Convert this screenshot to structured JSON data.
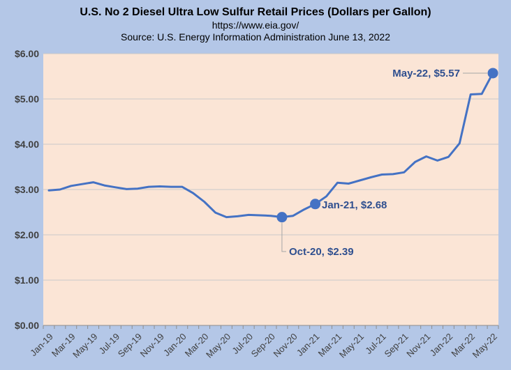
{
  "chart_data": {
    "type": "line",
    "title": "U.S. No 2 Diesel Ultra Low Sulfur Retail Prices (Dollars per Gallon)",
    "subtitle": "https://www.eia.gov/",
    "source": "Source: U.S. Energy Information Administration  June 13, 2022",
    "xlabel": "",
    "ylabel": "",
    "ylim": [
      0,
      6
    ],
    "grid": true,
    "colors": {
      "line": "#4472c4",
      "plot_bg": "#fbe5d6",
      "page_bg": "#b4c7e7",
      "annotation": "#2f4f8f"
    },
    "y_ticks": [
      "$0.00",
      "$1.00",
      "$2.00",
      "$3.00",
      "$4.00",
      "$5.00",
      "$6.00"
    ],
    "x_tick_labels": [
      "Jan-19",
      "Mar-19",
      "May-19",
      "Jul-19",
      "Sep-19",
      "Nov-19",
      "Jan-20",
      "Mar-20",
      "May-20",
      "Jul-20",
      "Sep-20",
      "Nov-20",
      "Jan-21",
      "Mar-21",
      "May-21",
      "Jul-21",
      "Sep-21",
      "Nov-21",
      "Jan-22",
      "Mar-22",
      "May-22"
    ],
    "x": [
      "Jan-19",
      "Feb-19",
      "Mar-19",
      "Apr-19",
      "May-19",
      "Jun-19",
      "Jul-19",
      "Aug-19",
      "Sep-19",
      "Oct-19",
      "Nov-19",
      "Dec-19",
      "Jan-20",
      "Feb-20",
      "Mar-20",
      "Apr-20",
      "May-20",
      "Jun-20",
      "Jul-20",
      "Aug-20",
      "Sep-20",
      "Oct-20",
      "Nov-20",
      "Dec-20",
      "Jan-21",
      "Feb-21",
      "Mar-21",
      "Apr-21",
      "May-21",
      "Jun-21",
      "Jul-21",
      "Aug-21",
      "Sep-21",
      "Oct-21",
      "Nov-21",
      "Dec-21",
      "Jan-22",
      "Feb-22",
      "Mar-22",
      "Apr-22",
      "May-22"
    ],
    "series": [
      {
        "values": [
          2.98,
          3.0,
          3.08,
          3.12,
          3.16,
          3.09,
          3.05,
          3.01,
          3.02,
          3.06,
          3.07,
          3.06,
          3.06,
          2.92,
          2.73,
          2.49,
          2.39,
          2.41,
          2.44,
          2.43,
          2.42,
          2.39,
          2.42,
          2.56,
          2.68,
          2.85,
          3.15,
          3.13,
          3.2,
          3.27,
          3.33,
          3.34,
          3.38,
          3.61,
          3.73,
          3.64,
          3.72,
          4.02,
          5.1,
          5.11,
          5.57
        ]
      }
    ],
    "annotations": [
      {
        "label": "May-22, $5.57",
        "x": "May-22",
        "y": 5.57
      },
      {
        "label": "Jan-21, $2.68",
        "x": "Jan-21",
        "y": 2.68
      },
      {
        "label": "Oct-20, $2.39",
        "x": "Oct-20",
        "y": 2.39
      }
    ]
  }
}
